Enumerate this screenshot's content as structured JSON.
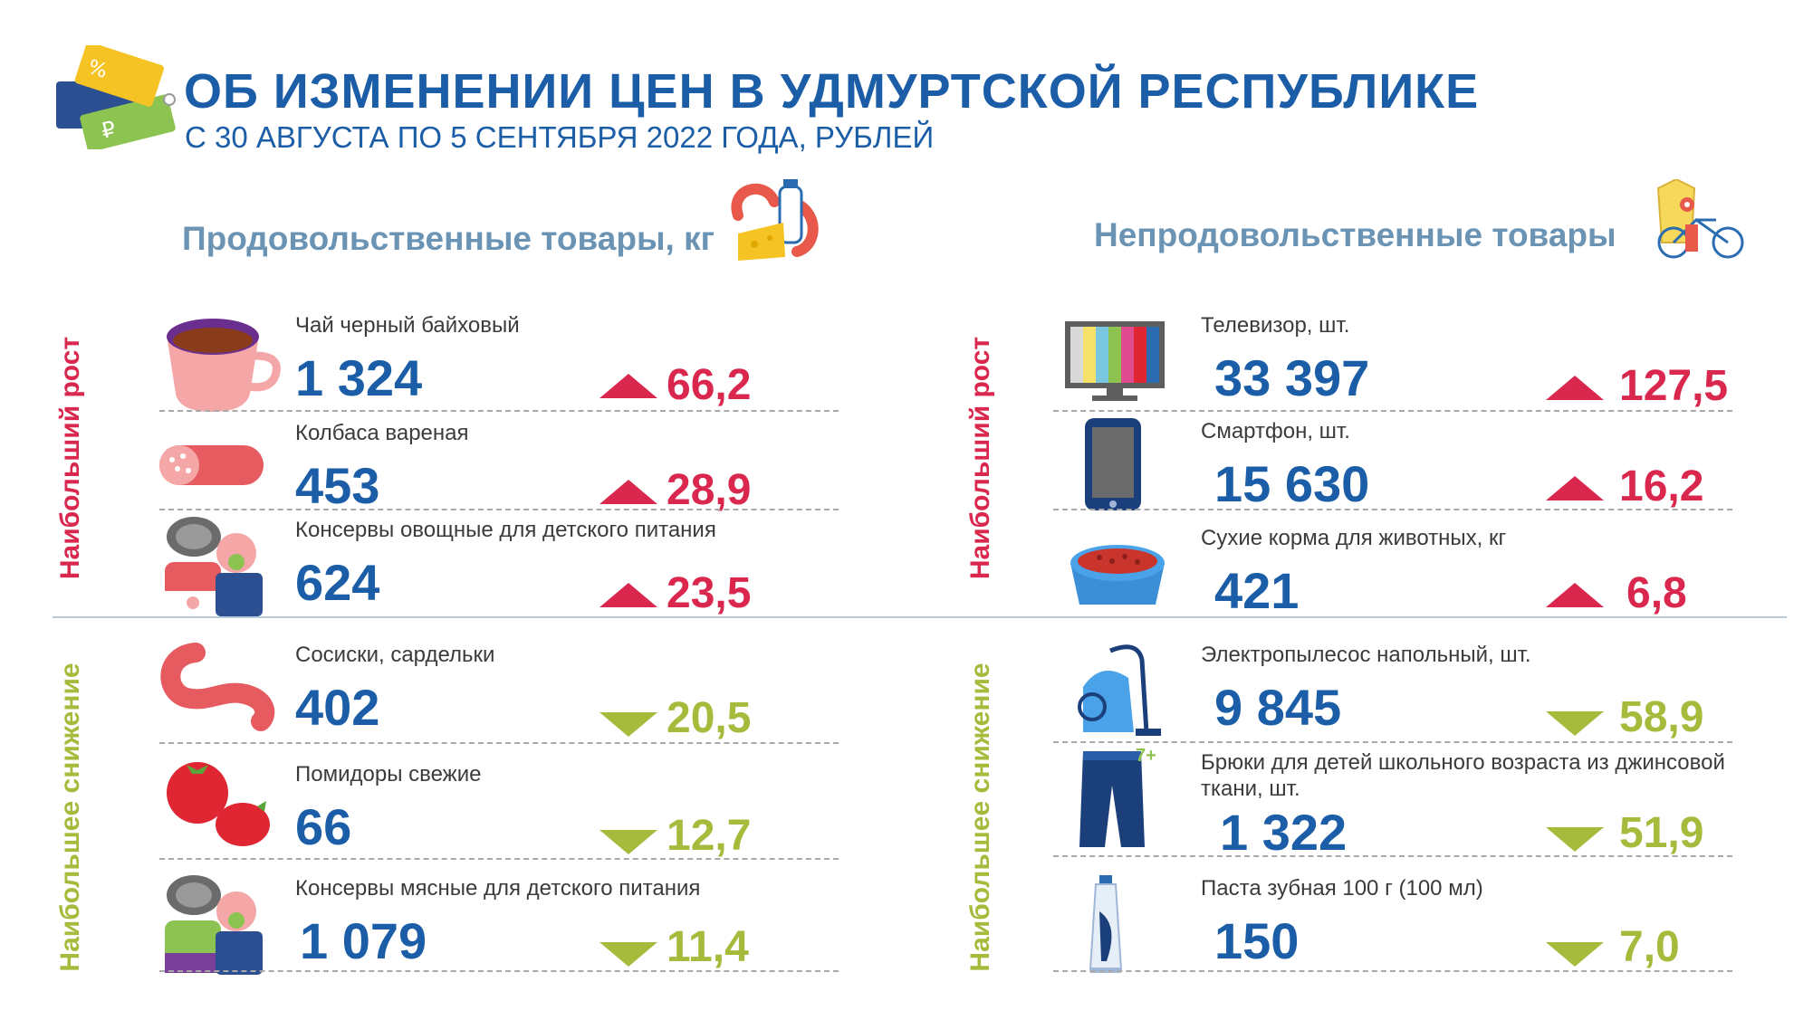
{
  "header": {
    "title": "ОБ ИЗМЕНЕНИИ ЦЕН В УДМУРТСКОЙ РЕСПУБЛИКЕ",
    "subtitle": "С 30 АВГУСТА ПО 5 СЕНТЯБРЯ 2022 ГОДА, РУБЛЕЙ"
  },
  "colors": {
    "title": "#1b5ea7",
    "increase": "#d9274e",
    "decrease": "#a6bb3c",
    "section": "#6b94b4"
  },
  "sections": {
    "food": {
      "title": "Продовольственные товары, кг"
    },
    "nonfood": {
      "title": "Непродовольственные товары"
    }
  },
  "labels": {
    "growth": "Наибольший рост",
    "decline": "Наибольшее снижение"
  },
  "food_growth": [
    {
      "icon": "tea-cup-icon",
      "name": "Чай черный байховый",
      "price": "1 324",
      "change": "66,2"
    },
    {
      "icon": "sausage-icon",
      "name": "Колбаса вареная",
      "price": "453",
      "change": "28,9"
    },
    {
      "icon": "baby-food-can-icon",
      "name": "Консервы овощные для детского питания",
      "price": "624",
      "change": "23,5"
    }
  ],
  "food_decline": [
    {
      "icon": "sausages-icon",
      "name": "Сосиски, сардельки",
      "price": "402",
      "change": "20,5"
    },
    {
      "icon": "tomato-icon",
      "name": "Помидоры свежие",
      "price": "66",
      "change": "12,7"
    },
    {
      "icon": "baby-food-can-icon",
      "name": "Консервы мясные для детского питания",
      "price": "1 079",
      "change": "11,4"
    }
  ],
  "nonfood_growth": [
    {
      "icon": "tv-icon",
      "name": "Телевизор, шт.",
      "price": "33 397",
      "change": "127,5"
    },
    {
      "icon": "smartphone-icon",
      "name": "Смартфон, шт.",
      "price": "15 630",
      "change": "16,2"
    },
    {
      "icon": "pet-food-bowl-icon",
      "name": "Сухие корма для животных, кг",
      "price": "421",
      "change": "6,8"
    }
  ],
  "nonfood_decline": [
    {
      "icon": "vacuum-cleaner-icon",
      "name": "Электропылесос напольный, шт.",
      "price": "9 845",
      "change": "58,9"
    },
    {
      "icon": "jeans-icon",
      "badge": "7+",
      "name": "Брюки для детей школьного возраста из джинсовой ткани, шт.",
      "price": "1 322",
      "change": "51,9"
    },
    {
      "icon": "toothpaste-icon",
      "name": "Паста зубная 100 г (100 мл)",
      "price": "150",
      "change": "7,0"
    }
  ]
}
